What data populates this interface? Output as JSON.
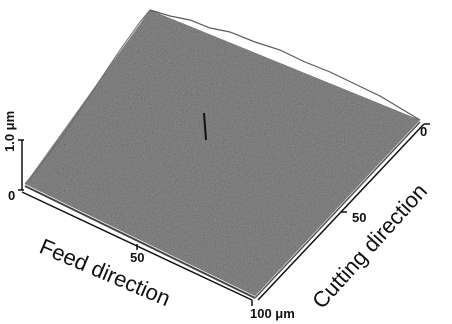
{
  "figure": {
    "z_axis": {
      "max_label": "1.0 μm",
      "zero_label": "0"
    },
    "feed_axis": {
      "label": "Feed direction",
      "tick_mid": "50",
      "tick_end": "100 μm"
    },
    "cutting_axis": {
      "label": "Cutting direction",
      "tick_start": "0",
      "tick_mid": "50"
    },
    "colors": {
      "surface": "#8a8a8a",
      "ink": "#111111"
    }
  }
}
